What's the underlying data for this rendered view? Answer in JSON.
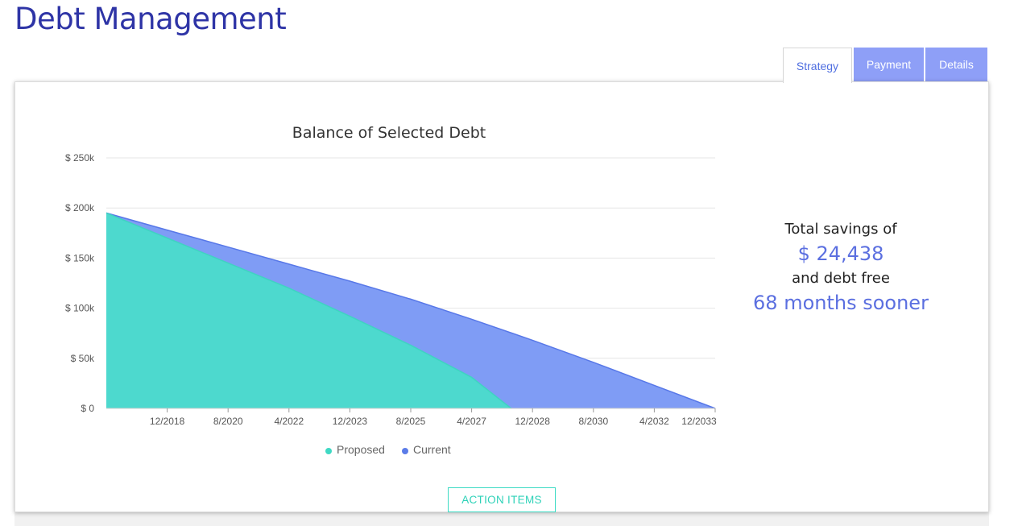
{
  "page": {
    "title": "Debt Management"
  },
  "tabs": [
    {
      "label": "Strategy",
      "active": true
    },
    {
      "label": "Payment",
      "active": false
    },
    {
      "label": "Details",
      "active": false
    }
  ],
  "chart_data": {
    "type": "area",
    "title": "Balance of Selected Debt",
    "y_ticks": [
      "$ 0",
      "$ 50k",
      "$ 100k",
      "$ 150k",
      "$ 200k",
      "$ 250k"
    ],
    "ylim": [
      0,
      250000
    ],
    "x_ticks": [
      "12/2018",
      "8/2020",
      "4/2022",
      "12/2023",
      "8/2025",
      "4/2027",
      "12/2028",
      "8/2030",
      "4/2032",
      "12/2033"
    ],
    "x_tick_months": [
      17,
      37,
      57,
      77,
      97,
      117,
      137,
      157,
      177,
      197
    ],
    "xlim": [
      -3,
      197
    ],
    "grid": true,
    "legend_position": "bottom",
    "series": [
      {
        "name": "Current",
        "color": "#7f9cf5",
        "line_color": "#5878e8",
        "points": [
          [
            -3,
            195000
          ],
          [
            17,
            178000
          ],
          [
            37,
            161000
          ],
          [
            57,
            144000
          ],
          [
            77,
            127000
          ],
          [
            97,
            109000
          ],
          [
            117,
            89000
          ],
          [
            137,
            68000
          ],
          [
            157,
            46000
          ],
          [
            177,
            23000
          ],
          [
            197,
            0
          ]
        ]
      },
      {
        "name": "Proposed",
        "color": "#4dd9ce",
        "line_color": "#3fd3c2",
        "points": [
          [
            -3,
            195000
          ],
          [
            17,
            170000
          ],
          [
            37,
            145000
          ],
          [
            57,
            120000
          ],
          [
            77,
            92000
          ],
          [
            97,
            63000
          ],
          [
            117,
            31000
          ],
          [
            130,
            0
          ]
        ]
      }
    ],
    "legend": [
      {
        "name": "Proposed",
        "color": "#3fd9c4"
      },
      {
        "name": "Current",
        "color": "#5b7ce8"
      }
    ]
  },
  "savings": {
    "line1": "Total savings of",
    "amount": "$ 24,438",
    "line3": "and debt free",
    "months": "68 months sooner"
  },
  "actions": {
    "action_items_label": "ACTION ITEMS"
  }
}
